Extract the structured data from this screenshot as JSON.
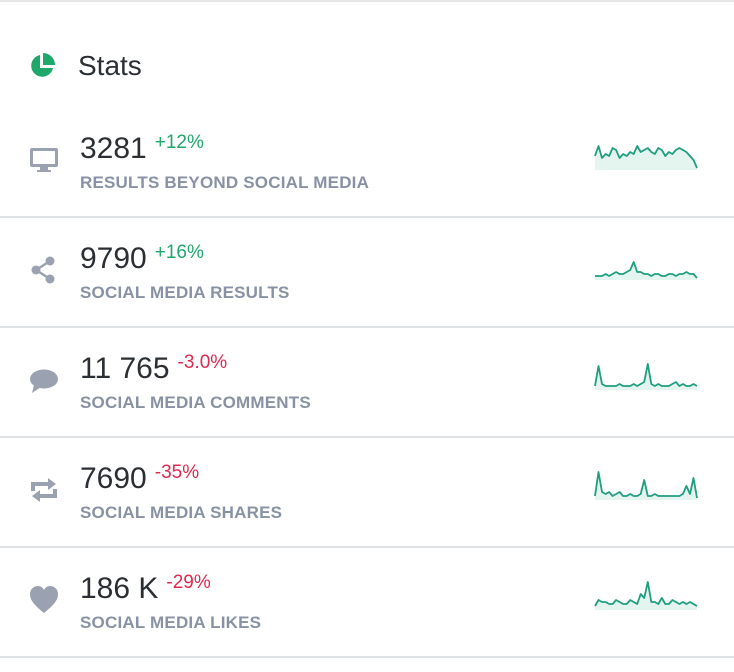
{
  "header": {
    "title": "Stats",
    "icon": "pie-chart-icon"
  },
  "colors": {
    "accent": "#20a86b",
    "negative": "#e0294f",
    "spark": "#1f9e80",
    "spark_fill": "#e4f4ee",
    "icon": "#9aa2b1"
  },
  "stats": [
    {
      "value": "3281",
      "change": "+12%",
      "trend": "pos",
      "label": "RESULTS BEYOND SOCIAL MEDIA",
      "icon": "monitor-icon",
      "spark": [
        18,
        8,
        20,
        16,
        18,
        10,
        12,
        20,
        16,
        18,
        14,
        16,
        8,
        14,
        12,
        10,
        14,
        16,
        10,
        12,
        18,
        14,
        16,
        12,
        10,
        12,
        14,
        18,
        22,
        30
      ]
    },
    {
      "value": "9790",
      "change": "+16%",
      "trend": "pos",
      "label": "SOCIAL MEDIA RESULTS",
      "icon": "share-icon",
      "spark": [
        28,
        28,
        28,
        26,
        28,
        26,
        24,
        26,
        26,
        24,
        22,
        14,
        24,
        24,
        26,
        26,
        28,
        26,
        26,
        28,
        28,
        26,
        26,
        28,
        26,
        26,
        24,
        26,
        26,
        30
      ]
    },
    {
      "value": "11 765",
      "change": "-3.0%",
      "trend": "neg",
      "label": "SOCIAL MEDIA COMMENTS",
      "icon": "comment-icon",
      "spark": [
        28,
        8,
        26,
        28,
        28,
        28,
        28,
        26,
        28,
        28,
        28,
        26,
        28,
        26,
        24,
        6,
        26,
        28,
        26,
        28,
        28,
        28,
        26,
        24,
        28,
        26,
        28,
        28,
        26,
        28
      ]
    },
    {
      "value": "7690",
      "change": "-35%",
      "trend": "neg",
      "label": "SOCIAL MEDIA SHARES",
      "icon": "repeat-icon",
      "spark": [
        28,
        4,
        24,
        26,
        24,
        28,
        26,
        24,
        28,
        28,
        26,
        28,
        28,
        26,
        12,
        28,
        28,
        26,
        28,
        28,
        28,
        28,
        28,
        28,
        28,
        26,
        18,
        26,
        10,
        30
      ]
    },
    {
      "value": "186 K",
      "change": "-29%",
      "trend": "neg",
      "label": "SOCIAL MEDIA LIKES",
      "icon": "heart-icon",
      "spark": [
        28,
        22,
        24,
        24,
        26,
        26,
        22,
        24,
        26,
        26,
        22,
        24,
        26,
        16,
        20,
        4,
        24,
        24,
        26,
        20,
        26,
        26,
        22,
        24,
        26,
        24,
        26,
        24,
        26,
        28
      ]
    }
  ]
}
